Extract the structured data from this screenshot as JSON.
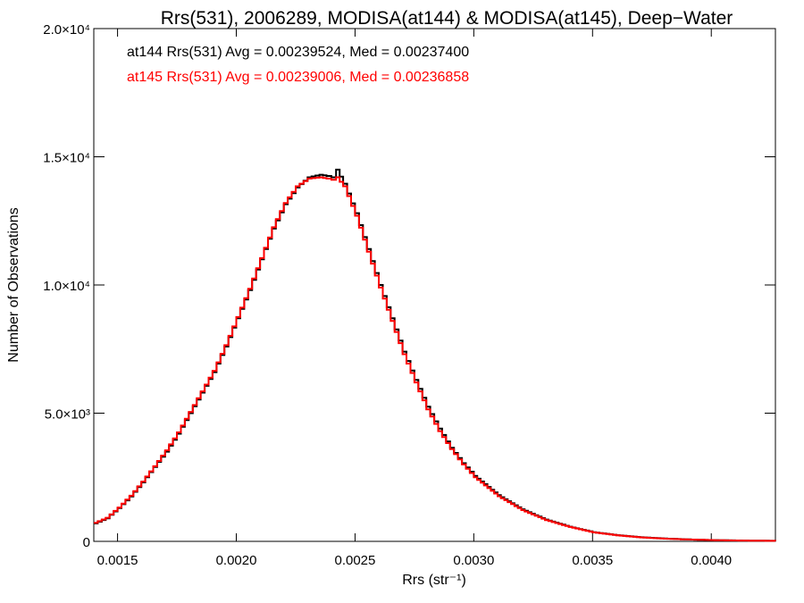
{
  "chart_data": {
    "type": "line",
    "title": "Rrs(531), 2006289, MODISA(at144) & MODISA(at145), Deep−Water",
    "xlabel": "Rrs (str⁻¹)",
    "ylabel": "Number of Observations",
    "xlim": [
      0.0014,
      0.00427
    ],
    "ylim": [
      0,
      20000
    ],
    "x_ticks": [
      "0.0015",
      "0.0020",
      "0.0025",
      "0.0030",
      "0.0035",
      "0.0040"
    ],
    "x_tick_values": [
      0.0015,
      0.002,
      0.0025,
      0.003,
      0.0035,
      0.004
    ],
    "y_ticks": [
      "0",
      "5.0×10³",
      "1.0×10⁴",
      "1.5×10⁴",
      "2.0×10⁴"
    ],
    "y_tick_values": [
      0,
      5000,
      10000,
      15000,
      20000
    ],
    "grid": false,
    "legend_position": "top-left",
    "annotations": [
      {
        "text": "at144 Rrs(531) Avg = 0.00239524, Med = 0.00237400",
        "color": "#000000"
      },
      {
        "text": "at145 Rrs(531) Avg = 0.00239006, Med = 0.00236858",
        "color": "#ff0000"
      }
    ],
    "series": [
      {
        "name": "at144",
        "color": "#000000",
        "x": [
          0.0014,
          0.00145,
          0.0015,
          0.00155,
          0.0016,
          0.00165,
          0.0017,
          0.00175,
          0.0018,
          0.00185,
          0.0019,
          0.00195,
          0.002,
          0.00205,
          0.0021,
          0.00215,
          0.0022,
          0.00225,
          0.0023,
          0.00235,
          0.00238,
          0.0024,
          0.00242,
          0.00245,
          0.0025,
          0.00255,
          0.0026,
          0.00265,
          0.0027,
          0.00275,
          0.0028,
          0.00285,
          0.0029,
          0.00295,
          0.003,
          0.0031,
          0.0032,
          0.0033,
          0.0034,
          0.0035,
          0.0036,
          0.0037,
          0.0038,
          0.0039,
          0.004,
          0.0041,
          0.0042,
          0.00427
        ],
        "y": [
          700,
          900,
          1300,
          1750,
          2300,
          2900,
          3500,
          4200,
          5000,
          5800,
          6600,
          7600,
          8700,
          9800,
          11000,
          12200,
          13150,
          13800,
          14200,
          14300,
          14250,
          14200,
          14500,
          13950,
          12800,
          11400,
          10000,
          8700,
          7400,
          6300,
          5250,
          4400,
          3650,
          3050,
          2550,
          1800,
          1250,
          850,
          570,
          360,
          240,
          160,
          110,
          75,
          50,
          35,
          25,
          20
        ]
      },
      {
        "name": "at145",
        "color": "#ff0000",
        "x": [
          0.0014,
          0.00145,
          0.0015,
          0.00155,
          0.0016,
          0.00165,
          0.0017,
          0.00175,
          0.0018,
          0.00185,
          0.0019,
          0.00195,
          0.002,
          0.00205,
          0.0021,
          0.00215,
          0.0022,
          0.00225,
          0.0023,
          0.00235,
          0.00238,
          0.0024,
          0.00242,
          0.00245,
          0.0025,
          0.00255,
          0.0026,
          0.00265,
          0.0027,
          0.00275,
          0.0028,
          0.00285,
          0.0029,
          0.00295,
          0.003,
          0.0031,
          0.0032,
          0.0033,
          0.0034,
          0.0035,
          0.0036,
          0.0037,
          0.0038,
          0.0039,
          0.004,
          0.0041,
          0.0042,
          0.00427
        ],
        "y": [
          720,
          920,
          1320,
          1780,
          2330,
          2930,
          3550,
          4250,
          5050,
          5850,
          6650,
          7650,
          8750,
          9850,
          11050,
          12250,
          13200,
          13850,
          14150,
          14200,
          14150,
          14100,
          14200,
          13850,
          12700,
          11300,
          9900,
          8600,
          7300,
          6200,
          5150,
          4300,
          3600,
          3000,
          2500,
          1760,
          1220,
          830,
          560,
          350,
          235,
          155,
          105,
          72,
          48,
          34,
          24,
          19
        ]
      }
    ]
  }
}
